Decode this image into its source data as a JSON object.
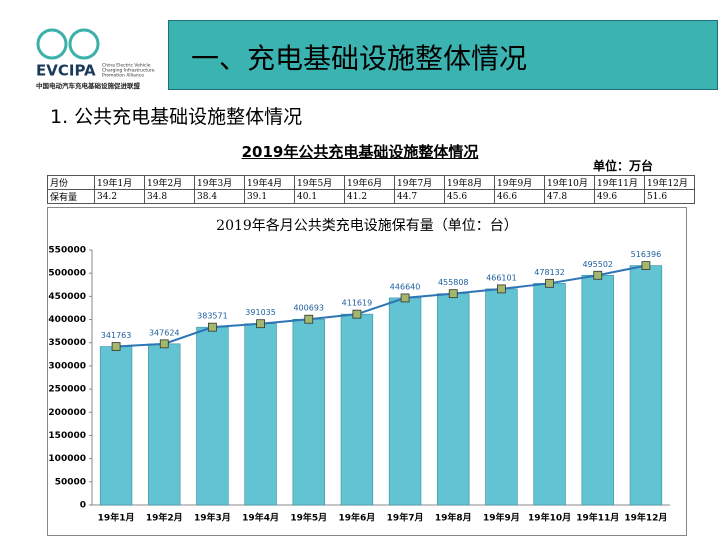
{
  "logo": {
    "name": "EVCIPA",
    "english": [
      "China Electric Vehicle",
      "Charging Infrastructure",
      "Promotion Alliance"
    ],
    "chinese": "中国电动汽车充电基础设施促进联盟"
  },
  "header": {
    "title": "一、充电基础设施整体情况"
  },
  "section": {
    "title": "1. 公共充电基础设施整体情况"
  },
  "table": {
    "title": "2019年公共充电基础设施整体情况",
    "unit": "单位：万台",
    "header": [
      "月份",
      "19年1月",
      "19年2月",
      "19年3月",
      "19年4月",
      "19年5月",
      "19年6月",
      "19年7月",
      "19年8月",
      "19年9月",
      "19年10月",
      "19年11月",
      "19年12月"
    ],
    "rows": [
      [
        "保有量",
        34.2,
        34.8,
        38.4,
        39.1,
        40.1,
        41.2,
        44.7,
        45.6,
        46.6,
        47.8,
        49.6,
        51.6
      ]
    ]
  },
  "chart_data": {
    "type": "bar",
    "title": "2019年各月公共类充电设施保有量（单位：台）",
    "categories": [
      "19年1月",
      "19年2月",
      "19年3月",
      "19年4月",
      "19年5月",
      "19年6月",
      "19年7月",
      "19年8月",
      "19年9月",
      "19年10月",
      "19年11月",
      "19年12月"
    ],
    "values": [
      341763,
      347624,
      383571,
      391035,
      400693,
      411619,
      446640,
      455808,
      466101,
      478132,
      495502,
      516396
    ],
    "color": "#62c3d3",
    "line": true,
    "line_color": "#2e75b6",
    "marker_color": "#a3b86c",
    "ylim": [
      0,
      550000
    ],
    "yticks": [
      0,
      50000,
      100000,
      150000,
      200000,
      250000,
      300000,
      350000,
      400000,
      450000,
      500000,
      550000
    ],
    "grid": false
  }
}
